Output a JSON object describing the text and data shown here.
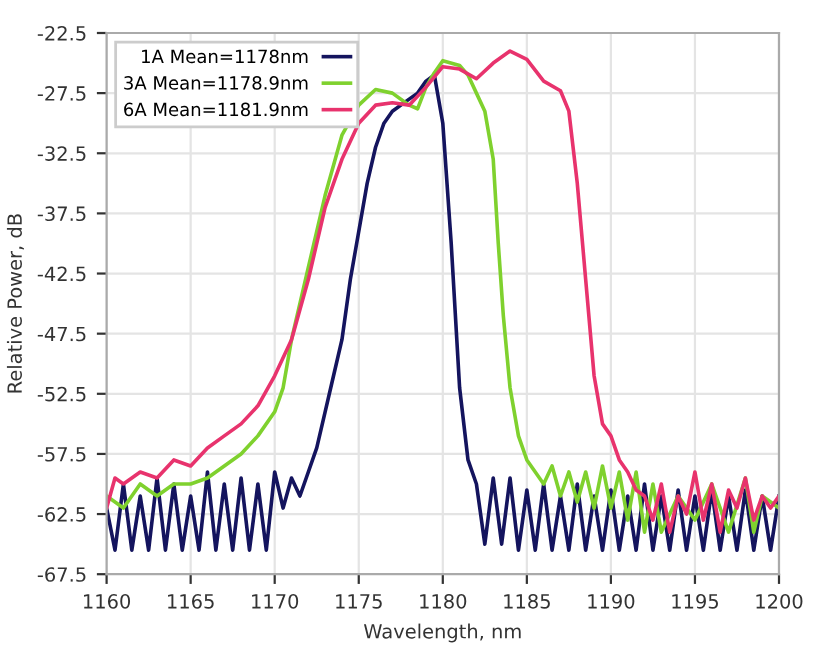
{
  "chart_data": {
    "type": "line",
    "xlabel": "Wavelength, nm",
    "ylabel": "Relative Power, dB",
    "xlim": [
      1160,
      1200
    ],
    "xticks": [
      1160,
      1165,
      1170,
      1175,
      1180,
      1185,
      1190,
      1195,
      1200
    ],
    "ylim": [
      -67.5,
      -22.5
    ],
    "yticks": [
      -67.5,
      -62.5,
      -57.5,
      -52.5,
      -47.5,
      -42.5,
      -37.5,
      -32.5,
      -27.5,
      -22.5
    ],
    "grid": true,
    "legend": "top left",
    "series": [
      {
        "name": "1A Mean=1178nm",
        "color": "#14145e",
        "x": [
          1160,
          1160.5,
          1161,
          1161.5,
          1162,
          1162.5,
          1163,
          1163.5,
          1164,
          1164.5,
          1165,
          1165.5,
          1166,
          1166.5,
          1167,
          1167.5,
          1168,
          1168.5,
          1169,
          1169.5,
          1170,
          1170.5,
          1171,
          1171.5,
          1172,
          1172.5,
          1173,
          1173.5,
          1174,
          1174.5,
          1175,
          1175.5,
          1176,
          1176.5,
          1177,
          1178,
          1178.5,
          1179,
          1179.5,
          1180,
          1180.5,
          1181,
          1181.5,
          1182,
          1182.5,
          1183,
          1183.5,
          1184,
          1184.5,
          1185,
          1185.5,
          1186,
          1186.5,
          1187,
          1187.5,
          1188,
          1188.5,
          1189,
          1189.5,
          1190,
          1190.5,
          1191,
          1191.5,
          1192,
          1192.5,
          1193,
          1193.5,
          1194,
          1194.5,
          1195,
          1195.5,
          1196,
          1196.5,
          1197,
          1197.5,
          1198,
          1198.5,
          1199,
          1199.5,
          1200
        ],
        "values": [
          -62,
          -65.5,
          -60,
          -65.5,
          -61,
          -65.5,
          -59.5,
          -65.5,
          -60,
          -65.5,
          -61,
          -65.5,
          -59,
          -65.5,
          -60,
          -65.5,
          -59.5,
          -65.5,
          -60,
          -65.5,
          -59,
          -62,
          -59.5,
          -61,
          -59,
          -57,
          -54,
          -51,
          -48,
          -43,
          -39,
          -35,
          -32,
          -30,
          -29,
          -28,
          -27.5,
          -26.5,
          -26,
          -30,
          -40,
          -52,
          -58,
          -60,
          -65,
          -59.5,
          -65,
          -59.5,
          -65.5,
          -60.5,
          -65.5,
          -60,
          -65.5,
          -61,
          -65.5,
          -60,
          -65.5,
          -61,
          -65.5,
          -60.5,
          -65.5,
          -61,
          -65.5,
          -60,
          -65.5,
          -61,
          -65.5,
          -60.5,
          -65.5,
          -61,
          -65.5,
          -60.5,
          -65.5,
          -61,
          -65.5,
          -60.5,
          -65.5,
          -61,
          -65.5,
          -61
        ]
      },
      {
        "name": "3A Mean=1178.9nm",
        "color": "#7fd12e",
        "x": [
          1160,
          1161,
          1162,
          1163,
          1164,
          1165,
          1166,
          1167,
          1168,
          1169,
          1170,
          1170.5,
          1171,
          1172,
          1173,
          1174,
          1175,
          1176,
          1177,
          1178,
          1178.5,
          1179,
          1179.5,
          1180,
          1181,
          1181.5,
          1182,
          1182.5,
          1183,
          1183.3,
          1183.6,
          1184,
          1184.5,
          1185,
          1186,
          1186.5,
          1187,
          1187.5,
          1188,
          1188.5,
          1189,
          1189.5,
          1190,
          1190.5,
          1191,
          1191.5,
          1192,
          1192.5,
          1193,
          1194,
          1195,
          1196,
          1197,
          1198,
          1198.5,
          1199,
          1200
        ],
        "values": [
          -61,
          -62,
          -60,
          -61,
          -60,
          -60,
          -59.5,
          -58.5,
          -57.5,
          -56,
          -54,
          -52,
          -48,
          -42,
          -36,
          -31,
          -28.5,
          -27.2,
          -27.5,
          -28.5,
          -28.8,
          -27,
          -25.8,
          -24.8,
          -25.2,
          -26,
          -27.5,
          -29,
          -33,
          -40,
          -46,
          -52,
          -56,
          -58,
          -60,
          -58.5,
          -61,
          -59,
          -61.5,
          -59,
          -62,
          -58.5,
          -62,
          -59,
          -63,
          -59,
          -64,
          -60,
          -64,
          -61,
          -63,
          -60,
          -64,
          -59.5,
          -64,
          -61,
          -62
        ]
      },
      {
        "name": "6A Mean=1181.9nm",
        "color": "#e8336d",
        "x": [
          1160,
          1160.5,
          1161,
          1162,
          1163,
          1164,
          1165,
          1166,
          1167,
          1168,
          1169,
          1170,
          1171,
          1172,
          1173,
          1174,
          1175,
          1176,
          1177,
          1178,
          1179,
          1180,
          1181,
          1182,
          1183,
          1184,
          1185,
          1186,
          1187,
          1187.5,
          1188,
          1188.5,
          1189,
          1189.5,
          1190,
          1190.5,
          1191,
          1191.5,
          1192,
          1192.5,
          1193,
          1193.5,
          1194,
          1194.5,
          1195,
          1195.5,
          1196,
          1196.5,
          1197,
          1197.5,
          1198,
          1198.5,
          1199,
          1199.5,
          1200
        ],
        "values": [
          -62,
          -59.5,
          -60,
          -59,
          -59.5,
          -58,
          -58.5,
          -57,
          -56,
          -55,
          -53.5,
          -51,
          -48,
          -43,
          -37,
          -33,
          -30,
          -28.5,
          -28.3,
          -28.5,
          -27,
          -25.3,
          -25.5,
          -26.3,
          -25,
          -24,
          -24.7,
          -26.5,
          -27.3,
          -29,
          -35,
          -43,
          -51,
          -55,
          -56,
          -58,
          -59,
          -60.5,
          -61,
          -63,
          -60,
          -64,
          -61,
          -62.5,
          -59,
          -63,
          -60,
          -64,
          -60.5,
          -62,
          -59.5,
          -63,
          -61,
          -62,
          -61
        ]
      }
    ]
  }
}
